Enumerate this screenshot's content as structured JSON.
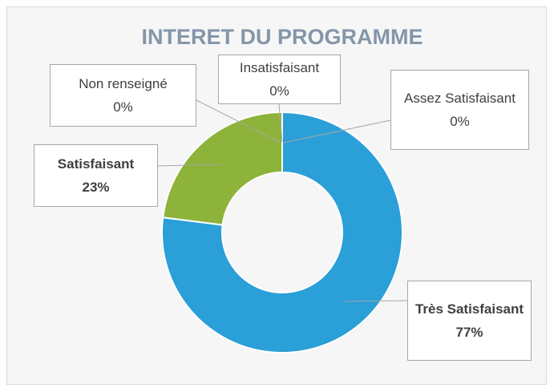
{
  "chart_data": {
    "type": "doughnut",
    "title": "INTERET DU PROGRAMME",
    "categories": [
      "Insatisfaisant",
      "Assez Satisfaisant",
      "Très Satisfaisant",
      "Satisfaisant",
      "Non renseigné"
    ],
    "values": [
      0,
      0,
      77,
      23,
      0
    ],
    "value_labels": [
      "0%",
      "0%",
      "77%",
      "23%",
      "0%"
    ],
    "colors": [
      "#2f75b5",
      "#ed7d31",
      "#2a9fd8",
      "#8db33a",
      "#ffc000"
    ],
    "bold_labels": [
      false,
      false,
      true,
      true,
      false
    ]
  }
}
